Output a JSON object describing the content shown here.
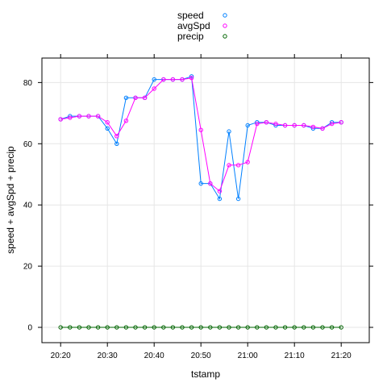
{
  "chart_data": {
    "type": "line",
    "xlabel": "tstamp",
    "ylabel": "speed + avgSpd + precip",
    "xlim_minutes": [
      1216,
      1286
    ],
    "ylim": [
      -5,
      88
    ],
    "x_ticks": [
      {
        "minute": 1220,
        "label": "20:20"
      },
      {
        "minute": 1230,
        "label": "20:30"
      },
      {
        "minute": 1240,
        "label": "20:40"
      },
      {
        "minute": 1250,
        "label": "20:50"
      },
      {
        "minute": 1260,
        "label": "21:00"
      },
      {
        "minute": 1270,
        "label": "21:10"
      },
      {
        "minute": 1280,
        "label": "21:20"
      }
    ],
    "y_ticks": [
      0,
      20,
      40,
      60,
      80
    ],
    "grid": true,
    "legend_position": "top",
    "x": [
      "20:20",
      "20:22",
      "20:24",
      "20:26",
      "20:28",
      "20:30",
      "20:32",
      "20:34",
      "20:36",
      "20:38",
      "20:40",
      "20:42",
      "20:44",
      "20:46",
      "20:48",
      "20:50",
      "20:52",
      "20:54",
      "20:56",
      "20:58",
      "21:00",
      "21:02",
      "21:04",
      "21:06",
      "21:08",
      "21:10",
      "21:12",
      "21:14",
      "21:16",
      "21:18",
      "21:20"
    ],
    "series": [
      {
        "name": "speed",
        "color": "#0080ff",
        "values": [
          68,
          69,
          69,
          69,
          69,
          65,
          60,
          75,
          75,
          75,
          81,
          81,
          81,
          81,
          82,
          47,
          47,
          42,
          64,
          42,
          66,
          67,
          67,
          66,
          66,
          66,
          66,
          65,
          65,
          67,
          67
        ]
      },
      {
        "name": "avgSpd",
        "color": "#ff00ff",
        "values": [
          68,
          68.5,
          69,
          69,
          69,
          67,
          62.5,
          67.5,
          75,
          75,
          78,
          81,
          81,
          81,
          81.5,
          64.5,
          47,
          44.5,
          53,
          53,
          54,
          66.5,
          67,
          66.5,
          66,
          66,
          66,
          65.5,
          65,
          66.5,
          67
        ]
      },
      {
        "name": "precip",
        "color": "#006400",
        "values": [
          0,
          0,
          0,
          0,
          0,
          0,
          0,
          0,
          0,
          0,
          0,
          0,
          0,
          0,
          0,
          0,
          0,
          0,
          0,
          0,
          0,
          0,
          0,
          0,
          0,
          0,
          0,
          0,
          0,
          0,
          0
        ]
      }
    ]
  }
}
